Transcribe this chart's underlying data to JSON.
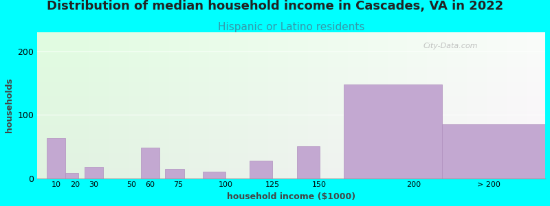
{
  "title": "Distribution of median household income in Cascades, VA in 2022",
  "subtitle": "Hispanic or Latino residents",
  "xlabel": "household income ($1000)",
  "ylabel": "households",
  "background_color": "#00FFFF",
  "bar_color": "#C3A8D1",
  "bar_edge_color": "#B090BE",
  "categories": [
    "10",
    "20",
    "30",
    "50",
    "60",
    "75",
    "100",
    "125",
    "150",
    "200",
    "> 200"
  ],
  "tick_positions": [
    10,
    20,
    30,
    50,
    60,
    75,
    100,
    125,
    150,
    200
  ],
  "bar_lefts": [
    5,
    15,
    25,
    42,
    55,
    68,
    88,
    113,
    138,
    163,
    215
  ],
  "bar_rights": [
    15,
    22,
    35,
    55,
    65,
    78,
    100,
    125,
    150,
    215,
    270
  ],
  "values": [
    63,
    8,
    18,
    0,
    48,
    15,
    10,
    28,
    50,
    148,
    85
  ],
  "ylim": [
    0,
    230
  ],
  "yticks": [
    0,
    100,
    200
  ],
  "title_fontsize": 13,
  "subtitle_fontsize": 11,
  "label_fontsize": 9,
  "subtitle_color": "#3399AA",
  "title_color": "#222222",
  "watermark": "City-Data.com"
}
